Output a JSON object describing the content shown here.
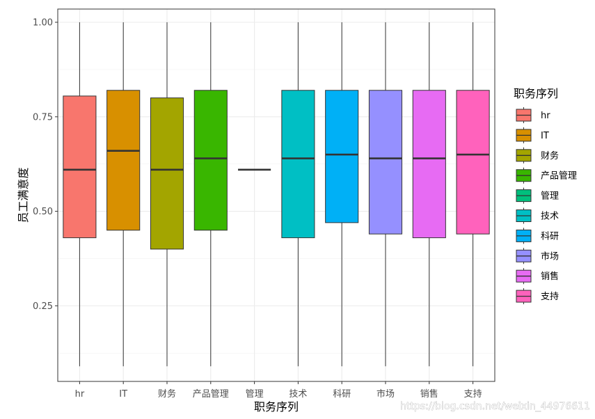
{
  "chart_data": {
    "type": "boxplot",
    "xlabel": "职务序列",
    "ylabel": "员工满意度",
    "ylim": [
      0.05,
      1.035
    ],
    "yticks": [
      0.25,
      0.5,
      0.75,
      1.0
    ],
    "ytick_labels": [
      "0.25",
      "0.50",
      "0.75",
      "1.00"
    ],
    "grid": true,
    "legend": {
      "title": "职务序列",
      "position": "right"
    },
    "categories": [
      "hr",
      "IT",
      "财务",
      "产品管理",
      "管理",
      "技术",
      "科研",
      "市场",
      "销售",
      "支持"
    ],
    "boxes": [
      {
        "name": "hr",
        "color": "#F8766D",
        "min": 0.09,
        "q1": 0.43,
        "median": 0.61,
        "q3": 0.805,
        "max": 1.0
      },
      {
        "name": "IT",
        "color": "#D89000",
        "min": 0.09,
        "q1": 0.45,
        "median": 0.66,
        "q3": 0.82,
        "max": 1.0
      },
      {
        "name": "财务",
        "color": "#A3A500",
        "min": 0.09,
        "q1": 0.4,
        "median": 0.61,
        "q3": 0.8,
        "max": 1.0
      },
      {
        "name": "产品管理",
        "color": "#39B600",
        "min": 0.09,
        "q1": 0.45,
        "median": 0.64,
        "q3": 0.82,
        "max": 1.0
      },
      {
        "name": "管理",
        "color": "#00BF7D",
        "min": 0.61,
        "q1": 0.61,
        "median": 0.61,
        "q3": 0.61,
        "max": 0.61
      },
      {
        "name": "技术",
        "color": "#00BFC4",
        "min": 0.09,
        "q1": 0.43,
        "median": 0.64,
        "q3": 0.82,
        "max": 1.0
      },
      {
        "name": "科研",
        "color": "#00B0F6",
        "min": 0.09,
        "q1": 0.47,
        "median": 0.65,
        "q3": 0.82,
        "max": 1.0
      },
      {
        "name": "市场",
        "color": "#9590FF",
        "min": 0.09,
        "q1": 0.44,
        "median": 0.64,
        "q3": 0.82,
        "max": 1.0
      },
      {
        "name": "销售",
        "color": "#E76BF3",
        "min": 0.09,
        "q1": 0.43,
        "median": 0.64,
        "q3": 0.82,
        "max": 1.0
      },
      {
        "name": "支持",
        "color": "#FF62BC",
        "min": 0.09,
        "q1": 0.44,
        "median": 0.65,
        "q3": 0.82,
        "max": 1.0
      }
    ]
  },
  "watermark": "https://blog.csdn.net/weixin_44976611"
}
